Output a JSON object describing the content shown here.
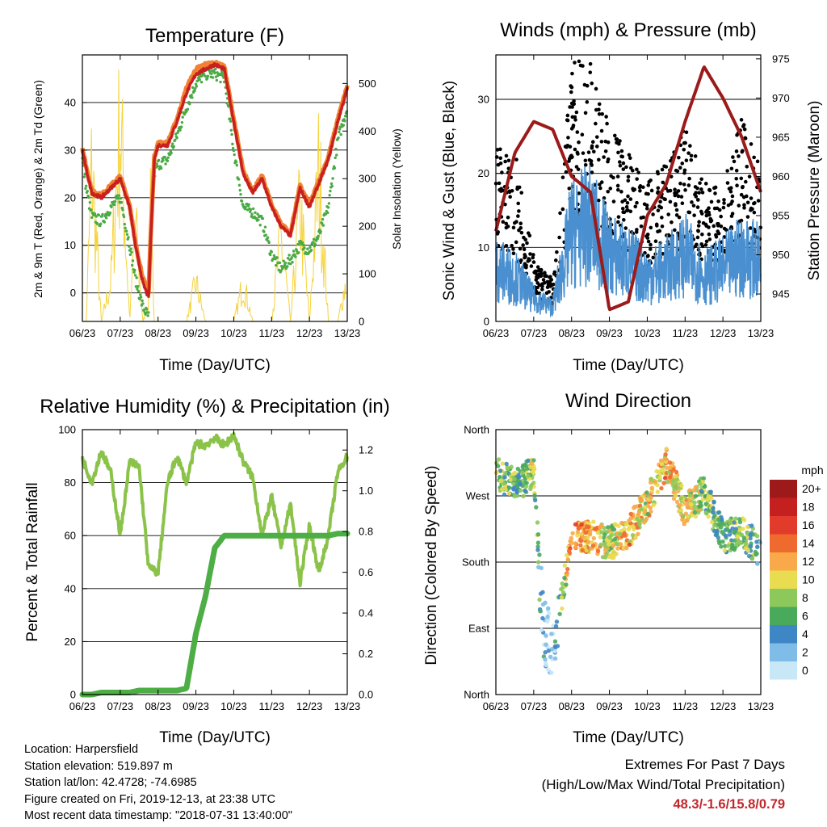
{
  "xticks": [
    "06/23",
    "07/23",
    "08/23",
    "09/23",
    "10/23",
    "11/23",
    "12/23",
    "13/23"
  ],
  "temperature": {
    "title": "Temperature (F)",
    "xlabel": "Time (Day/UTC)",
    "ylabel_left": "2m & 9m T (Red, Orange) & 2m Td (Green)",
    "ylabel_right": "Solar Insolation (Yellow)"
  },
  "winds": {
    "title": "Winds (mph) & Pressure (mb)",
    "xlabel": "Time (Day/UTC)",
    "ylabel_left": "Sonic Wind & Gust (Blue, Black)",
    "ylabel_right": "Station Pressure (Maroon)"
  },
  "humidity": {
    "title": "Relative Humidity (%) & Precipitation (in)",
    "xlabel": "Time (Day/UTC)",
    "ylabel_left": "Percent & Total Rainfall"
  },
  "direction": {
    "title": "Wind Direction",
    "xlabel": "Time (Day/UTC)",
    "ylabel_left": "Direction (Colored By Speed)",
    "legend_title": "mph",
    "legend_labels": [
      "20+",
      "18",
      "16",
      "14",
      "12",
      "10",
      "8",
      "6",
      "4",
      "2",
      "0"
    ],
    "legend_colors": [
      "#9e1a1a",
      "#c42020",
      "#e33b2b",
      "#ef6a2e",
      "#f9a84a",
      "#eadc50",
      "#8dc95a",
      "#4aaa5c",
      "#3f86c4",
      "#7fbce8",
      "#c8e8f8"
    ]
  },
  "info": {
    "location": "Location: Harpersfield",
    "elevation": "Station elevation: 519.897 m",
    "latlon": "Station lat/lon: 42.4728; -74.6985",
    "created": "Figure created on Fri, 2019-12-13, at 23:38 UTC",
    "recent": "Most recent data timestamp: \"2018-07-31 13:40:00\""
  },
  "extremes": {
    "title": "Extremes For Past 7 Days",
    "subtitle": "(High/Low/Max Wind/Total Precipitation)",
    "values": "48.3/-1.6/15.8/0.79"
  },
  "colors": {
    "temp2m": "#c8201f",
    "temp9m": "#f08232",
    "dewpoint": "#4aaa44",
    "solar": "#f5d33c",
    "wind": "#4a90d0",
    "gust": "#000000",
    "pressure": "#9b1b1b",
    "rh": "#8bc34a",
    "precip": "#4cae44"
  },
  "chart_data": [
    {
      "type": "line",
      "title": "Temperature (F)",
      "xlabel": "Time (Day/UTC)",
      "ylabel": "2m & 9m T (Red, Orange) & 2m Td (Green)",
      "y2label": "Solar Insolation (Yellow)",
      "ylim": [
        -6,
        50
      ],
      "y2lim": [
        0,
        560
      ],
      "yticks": [
        0,
        10,
        20,
        30,
        40
      ],
      "y2ticks": [
        0,
        100,
        200,
        300,
        400,
        500
      ],
      "x": [
        0,
        0.1,
        0.25,
        0.5,
        0.75,
        1,
        1.25,
        1.4,
        1.6,
        1.75,
        1.8,
        1.9,
        2.0,
        2.25,
        2.5,
        2.75,
        3.0,
        3.25,
        3.5,
        3.75,
        4.0,
        4.25,
        4.5,
        4.75,
        5.0,
        5.25,
        5.5,
        5.75,
        6.0,
        6.25,
        6.5,
        6.75,
        7.0
      ],
      "series": [
        {
          "name": "2m T",
          "values": [
            30,
            26,
            21,
            20,
            22,
            24,
            18,
            10,
            2,
            -1,
            10,
            28,
            31,
            31,
            36,
            42,
            46,
            47,
            48,
            47,
            36,
            25,
            21,
            24,
            18,
            14,
            12,
            22,
            18,
            23,
            28,
            36,
            43
          ]
        },
        {
          "name": "9m T",
          "values": [
            30.5,
            26.5,
            21.5,
            20.5,
            22.5,
            24.5,
            18.5,
            10.5,
            3,
            0,
            11,
            28.5,
            31.5,
            31.5,
            36.5,
            43,
            47,
            48,
            48.3,
            47.5,
            36.5,
            25.5,
            21.5,
            24.5,
            18.5,
            14.5,
            12.5,
            22.5,
            18.5,
            23.5,
            28.5,
            36.5,
            43.5
          ]
        },
        {
          "name": "2m Td",
          "values": [
            28,
            22,
            16,
            15,
            18,
            20,
            10,
            3,
            -3,
            -5,
            10,
            25,
            27,
            28,
            33,
            39,
            44,
            46,
            46,
            45,
            30,
            18,
            17,
            15,
            8,
            5,
            7,
            10,
            9,
            12,
            18,
            32,
            39
          ]
        },
        {
          "name": "Solar",
          "values": [
            0,
            0,
            400,
            0,
            100,
            520,
            0,
            250,
            0,
            50,
            350,
            0,
            0,
            0,
            0,
            0,
            100,
            0,
            0,
            0,
            0,
            100,
            0,
            0,
            0,
            220,
            0,
            300,
            0,
            400,
            0,
            0,
            120
          ]
        }
      ]
    },
    {
      "type": "line",
      "title": "Winds (mph) & Pressure (mb)",
      "xlabel": "Time (Day/UTC)",
      "ylabel": "Sonic Wind & Gust (Blue, Black)",
      "y2label": "Station Pressure (Maroon)",
      "ylim": [
        0,
        36
      ],
      "y2lim": [
        941.5,
        975.5
      ],
      "yticks": [
        0,
        10,
        20,
        30
      ],
      "y2ticks": [
        945,
        950,
        955,
        960,
        965,
        970,
        975
      ],
      "x": [
        0,
        0.5,
        1.0,
        1.5,
        2.0,
        2.5,
        3.0,
        3.5,
        4.0,
        4.5,
        5.0,
        5.5,
        6.0,
        6.5,
        7.0
      ],
      "series": [
        {
          "name": "Wind",
          "values": [
            7,
            6,
            3,
            2,
            12,
            13,
            9,
            8,
            6,
            7,
            9,
            6,
            7,
            9,
            8
          ]
        },
        {
          "name": "Gust",
          "values": [
            17,
            16,
            6,
            4,
            24,
            25,
            18,
            16,
            13,
            15,
            19,
            13,
            13,
            19,
            15
          ]
        },
        {
          "name": "Pressure",
          "values": [
            953,
            963,
            967,
            966,
            960,
            958,
            943,
            944,
            955,
            959,
            967,
            974,
            970,
            965,
            958
          ]
        }
      ]
    },
    {
      "type": "line",
      "title": "Relative Humidity (%) & Precipitation (in)",
      "xlabel": "Time (Day/UTC)",
      "ylabel": "Percent & Total Rainfall",
      "ylim": [
        0,
        100
      ],
      "y2lim": [
        0,
        1.3
      ],
      "yticks": [
        0,
        20,
        40,
        60,
        80,
        100
      ],
      "y2ticks": [
        0.0,
        0.2,
        0.4,
        0.6,
        0.8,
        1.0,
        1.2
      ],
      "x": [
        0,
        0.25,
        0.5,
        0.75,
        1.0,
        1.25,
        1.5,
        1.75,
        2.0,
        2.25,
        2.5,
        2.75,
        3.0,
        3.25,
        3.5,
        3.75,
        4.0,
        4.25,
        4.5,
        4.75,
        5.0,
        5.25,
        5.5,
        5.75,
        6.0,
        6.25,
        6.5,
        6.75,
        7.0
      ],
      "series": [
        {
          "name": "Relative Humidity",
          "values": [
            89,
            80,
            92,
            84,
            60,
            88,
            86,
            48,
            46,
            80,
            90,
            80,
            95,
            94,
            97,
            94,
            98,
            88,
            82,
            60,
            75,
            56,
            72,
            42,
            64,
            46,
            60,
            84,
            90
          ]
        },
        {
          "name": "Total Precipitation",
          "values": [
            0,
            0,
            0.01,
            0.01,
            0.01,
            0.01,
            0.02,
            0.02,
            0.02,
            0.02,
            0.02,
            0.03,
            0.3,
            0.48,
            0.72,
            0.78,
            0.78,
            0.78,
            0.78,
            0.78,
            0.78,
            0.78,
            0.78,
            0.78,
            0.78,
            0.78,
            0.78,
            0.79,
            0.79
          ]
        }
      ]
    },
    {
      "type": "scatter",
      "title": "Wind Direction",
      "xlabel": "Time (Day/UTC)",
      "ylabel": "Direction (Colored By Speed)",
      "yticks": [
        "North",
        "East",
        "South",
        "West",
        "North"
      ],
      "ylim": [
        0,
        360
      ],
      "x": [
        0,
        0.5,
        1.0,
        1.25,
        1.5,
        2.0,
        2.5,
        3.0,
        3.5,
        4.0,
        4.5,
        5.0,
        5.5,
        6.0,
        6.5,
        7.0
      ],
      "series": [
        {
          "name": "Direction",
          "values": [
            300,
            285,
            300,
            90,
            60,
            210,
            215,
            205,
            220,
            260,
            315,
            250,
            275,
            215,
            220,
            195
          ]
        },
        {
          "name": "Speed",
          "values": [
            8,
            6,
            9,
            2,
            1,
            13,
            12,
            9,
            12,
            10,
            12,
            10,
            8,
            6,
            8,
            5
          ]
        }
      ]
    }
  ]
}
